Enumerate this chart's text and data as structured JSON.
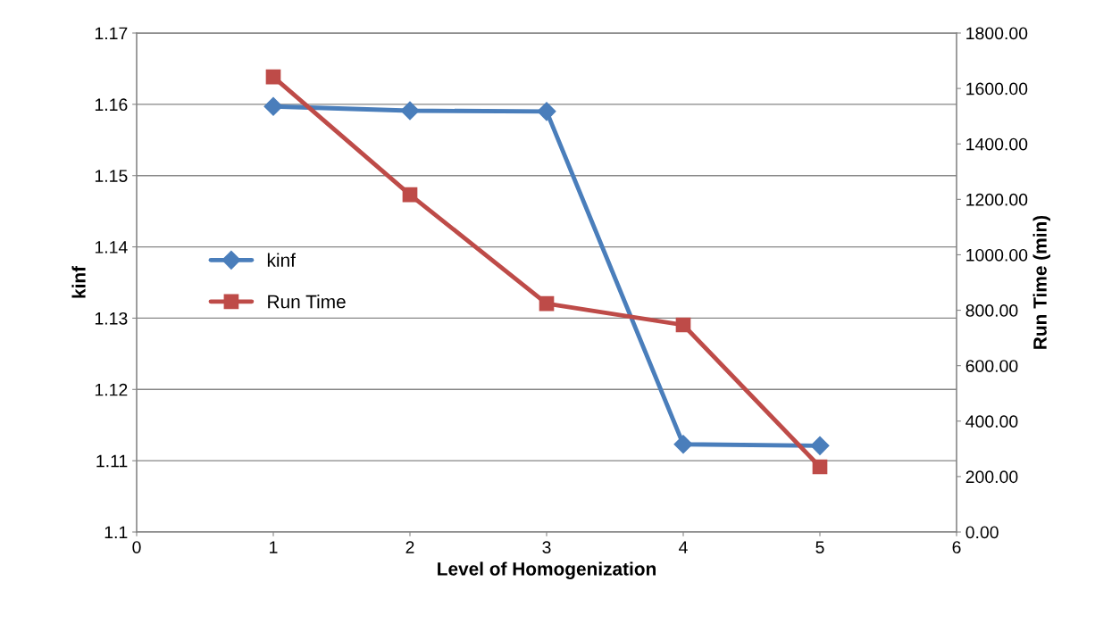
{
  "chart_data": {
    "type": "line",
    "xlabel": "Level of Homogenization",
    "ylabel": "kinf",
    "y2label": "Run Time (min)",
    "x": [
      1,
      2,
      3,
      4,
      5
    ],
    "series": [
      {
        "name": "kinf",
        "color": "#4a7ebb",
        "marker": "diamond",
        "values": [
          1.1597,
          1.1591,
          1.159,
          1.1123,
          1.1121
        ]
      },
      {
        "name": "Run Time",
        "color": "#be4b48",
        "marker": "square",
        "axis": "y2",
        "values": [
          1642,
          1217,
          824,
          747,
          235
        ]
      }
    ],
    "xlim": [
      0,
      6
    ],
    "xticks": [
      0,
      1,
      2,
      3,
      4,
      5,
      6
    ],
    "ylim": [
      1.1,
      1.17
    ],
    "yticks": [
      {
        "value": 1.1,
        "label": "1.1"
      },
      {
        "value": 1.11,
        "label": "1.11"
      },
      {
        "value": 1.12,
        "label": "1.12"
      },
      {
        "value": 1.13,
        "label": "1.13"
      },
      {
        "value": 1.14,
        "label": "1.14"
      },
      {
        "value": 1.15,
        "label": "1.15"
      },
      {
        "value": 1.16,
        "label": "1.16"
      },
      {
        "value": 1.17,
        "label": "1.17"
      }
    ],
    "y2lim": [
      0,
      1800
    ],
    "y2ticks": [
      {
        "value": 0,
        "label": "0.00"
      },
      {
        "value": 200,
        "label": "200.00"
      },
      {
        "value": 400,
        "label": "400.00"
      },
      {
        "value": 600,
        "label": "600.00"
      },
      {
        "value": 800,
        "label": "800.00"
      },
      {
        "value": 1000,
        "label": "1000.00"
      },
      {
        "value": 1200,
        "label": "1200.00"
      },
      {
        "value": 1400,
        "label": "1400.00"
      },
      {
        "value": 1600,
        "label": "1600.00"
      },
      {
        "value": 1800,
        "label": "1800.00"
      }
    ],
    "grid": "y",
    "legend": "left",
    "line_style": "solid"
  }
}
